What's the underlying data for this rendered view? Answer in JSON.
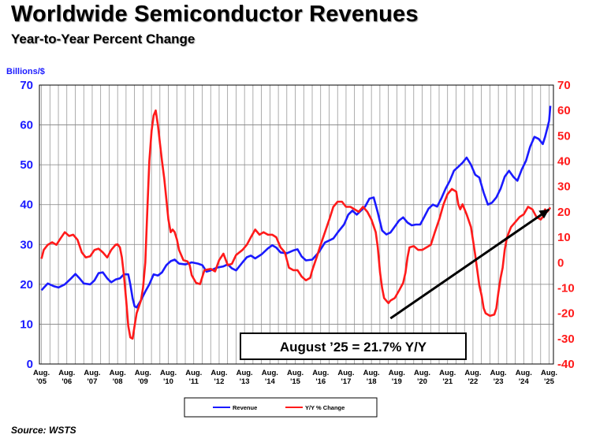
{
  "chart_data": {
    "type": "line",
    "title": "Worldwide Semiconductor Revenues",
    "subtitle": "Year-to-Year Percent Change",
    "y_left_label": "Billions/$",
    "y_left_range": [
      0,
      70
    ],
    "y_left_ticks": [
      "0",
      "10",
      "20",
      "30",
      "40",
      "50",
      "60",
      "70"
    ],
    "y_right_range": [
      -40,
      70
    ],
    "y_right_ticks": [
      "-40",
      "-30",
      "-20",
      "-10",
      "0",
      "10",
      "20",
      "30",
      "40",
      "50",
      "60",
      "70"
    ],
    "x_ticks": [
      {
        "top": "Aug.",
        "bottom": "'05"
      },
      {
        "top": "Aug.",
        "bottom": "'06"
      },
      {
        "top": "Aug.",
        "bottom": "'07"
      },
      {
        "top": "Aug.",
        "bottom": "'08"
      },
      {
        "top": "Aug.",
        "bottom": "'09"
      },
      {
        "top": "Aug.",
        "bottom": "'10"
      },
      {
        "top": "Aug.",
        "bottom": "'11"
      },
      {
        "top": "Aug.",
        "bottom": "'12"
      },
      {
        "top": "Aug.",
        "bottom": "'13"
      },
      {
        "top": "Aug.",
        "bottom": "'14"
      },
      {
        "top": "Aug.",
        "bottom": "'15"
      },
      {
        "top": "Aug.",
        "bottom": "'16"
      },
      {
        "top": "Aug.",
        "bottom": "'17"
      },
      {
        "top": "Aug.",
        "bottom": "'18"
      },
      {
        "top": "Aug.",
        "bottom": "'19"
      },
      {
        "top": "Aug.",
        "bottom": "'20"
      },
      {
        "top": "Aug.",
        "bottom": "'21"
      },
      {
        "top": "Aug.",
        "bottom": "'22"
      },
      {
        "top": "Aug.",
        "bottom": "'23"
      },
      {
        "top": "Aug.",
        "bottom": "'24"
      },
      {
        "top": "Aug.",
        "bottom": "'25"
      }
    ],
    "grid": true,
    "legend_position": "bottom-center",
    "annotation": "August ’25 = 21.7% Y/Y",
    "trend_arrow": {
      "from": {
        "x": 2019.33,
        "y": -22
      },
      "to": {
        "x": 2025.58,
        "y": 21
      }
    },
    "series": [
      {
        "name": "Revenue",
        "axis": "left",
        "color": "#1a1aff",
        "points": [
          [
            2005.58,
            18.5
          ],
          [
            2005.83,
            20.2
          ],
          [
            2006.08,
            19.5
          ],
          [
            2006.25,
            19.2
          ],
          [
            2006.5,
            20
          ],
          [
            2006.75,
            21.5
          ],
          [
            2006.92,
            22.6
          ],
          [
            2007.08,
            21.5
          ],
          [
            2007.25,
            20.2
          ],
          [
            2007.5,
            20
          ],
          [
            2007.67,
            21
          ],
          [
            2007.83,
            22.8
          ],
          [
            2008.0,
            23
          ],
          [
            2008.17,
            21.5
          ],
          [
            2008.33,
            20.5
          ],
          [
            2008.5,
            21.2
          ],
          [
            2008.67,
            21.5
          ],
          [
            2008.83,
            22.5
          ],
          [
            2009.0,
            22.5
          ],
          [
            2009.08,
            20
          ],
          [
            2009.17,
            16.5
          ],
          [
            2009.25,
            14.5
          ],
          [
            2009.33,
            14.2
          ],
          [
            2009.5,
            16
          ],
          [
            2009.67,
            18.2
          ],
          [
            2009.83,
            20
          ],
          [
            2010.0,
            22.5
          ],
          [
            2010.17,
            22.2
          ],
          [
            2010.33,
            23
          ],
          [
            2010.5,
            24.8
          ],
          [
            2010.67,
            25.8
          ],
          [
            2010.83,
            26.2
          ],
          [
            2011.0,
            25.2
          ],
          [
            2011.25,
            25
          ],
          [
            2011.5,
            25.5
          ],
          [
            2011.75,
            25.2
          ],
          [
            2011.92,
            24.8
          ],
          [
            2012.08,
            23.2
          ],
          [
            2012.25,
            23.5
          ],
          [
            2012.5,
            24.2
          ],
          [
            2012.75,
            24.5
          ],
          [
            2012.92,
            25
          ],
          [
            2013.08,
            24
          ],
          [
            2013.25,
            23.5
          ],
          [
            2013.5,
            25.5
          ],
          [
            2013.67,
            26.8
          ],
          [
            2013.83,
            27.2
          ],
          [
            2014.0,
            26.5
          ],
          [
            2014.25,
            27.5
          ],
          [
            2014.5,
            29
          ],
          [
            2014.67,
            29.8
          ],
          [
            2014.83,
            29.2
          ],
          [
            2015.0,
            28
          ],
          [
            2015.25,
            27.8
          ],
          [
            2015.5,
            28.5
          ],
          [
            2015.67,
            28.8
          ],
          [
            2015.83,
            27
          ],
          [
            2016.0,
            26
          ],
          [
            2016.25,
            26.2
          ],
          [
            2016.5,
            28
          ],
          [
            2016.75,
            30.5
          ],
          [
            2016.92,
            31
          ],
          [
            2017.08,
            31.5
          ],
          [
            2017.25,
            33
          ],
          [
            2017.5,
            35
          ],
          [
            2017.67,
            37.5
          ],
          [
            2017.83,
            38.5
          ],
          [
            2018.0,
            37.5
          ],
          [
            2018.17,
            38.5
          ],
          [
            2018.33,
            39.5
          ],
          [
            2018.5,
            41.5
          ],
          [
            2018.67,
            41.8
          ],
          [
            2018.83,
            38
          ],
          [
            2019.0,
            33.5
          ],
          [
            2019.17,
            32.5
          ],
          [
            2019.33,
            33
          ],
          [
            2019.5,
            34.5
          ],
          [
            2019.67,
            36
          ],
          [
            2019.83,
            36.8
          ],
          [
            2020.0,
            35.5
          ],
          [
            2020.17,
            34.8
          ],
          [
            2020.33,
            35
          ],
          [
            2020.5,
            35
          ],
          [
            2020.67,
            37
          ],
          [
            2020.83,
            39
          ],
          [
            2021.0,
            40
          ],
          [
            2021.17,
            39.5
          ],
          [
            2021.33,
            41.5
          ],
          [
            2021.5,
            44
          ],
          [
            2021.67,
            46
          ],
          [
            2021.83,
            48.5
          ],
          [
            2022.0,
            49.5
          ],
          [
            2022.17,
            50.5
          ],
          [
            2022.33,
            51.8
          ],
          [
            2022.5,
            50
          ],
          [
            2022.67,
            47.5
          ],
          [
            2022.83,
            46.8
          ],
          [
            2023.0,
            43
          ],
          [
            2023.17,
            40
          ],
          [
            2023.33,
            40.5
          ],
          [
            2023.5,
            41.8
          ],
          [
            2023.67,
            44
          ],
          [
            2023.83,
            47
          ],
          [
            2024.0,
            48.5
          ],
          [
            2024.17,
            47
          ],
          [
            2024.33,
            46
          ],
          [
            2024.5,
            48.8
          ],
          [
            2024.67,
            51
          ],
          [
            2024.83,
            54.5
          ],
          [
            2025.0,
            57
          ],
          [
            2025.17,
            56.5
          ],
          [
            2025.33,
            55.2
          ],
          [
            2025.42,
            57
          ],
          [
            2025.5,
            59
          ],
          [
            2025.58,
            61
          ],
          [
            2025.63,
            64.8
          ]
        ]
      },
      {
        "name": "Y/Y % Change",
        "axis": "right",
        "color": "#ff1a1a",
        "points": [
          [
            2005.58,
            1.5
          ],
          [
            2005.67,
            5
          ],
          [
            2005.83,
            7
          ],
          [
            2006.0,
            8
          ],
          [
            2006.17,
            7
          ],
          [
            2006.33,
            9.5
          ],
          [
            2006.5,
            12
          ],
          [
            2006.67,
            10.5
          ],
          [
            2006.83,
            11
          ],
          [
            2007.0,
            9
          ],
          [
            2007.17,
            4
          ],
          [
            2007.33,
            2
          ],
          [
            2007.5,
            2.5
          ],
          [
            2007.67,
            5
          ],
          [
            2007.83,
            5.5
          ],
          [
            2008.0,
            4
          ],
          [
            2008.17,
            2
          ],
          [
            2008.33,
            5
          ],
          [
            2008.5,
            7
          ],
          [
            2008.58,
            7.2
          ],
          [
            2008.67,
            6
          ],
          [
            2008.75,
            2
          ],
          [
            2008.83,
            -5
          ],
          [
            2008.92,
            -15
          ],
          [
            2009.0,
            -25
          ],
          [
            2009.08,
            -29.5
          ],
          [
            2009.17,
            -30
          ],
          [
            2009.25,
            -25
          ],
          [
            2009.33,
            -20
          ],
          [
            2009.5,
            -15
          ],
          [
            2009.58,
            -10
          ],
          [
            2009.67,
            0
          ],
          [
            2009.75,
            20
          ],
          [
            2009.83,
            40
          ],
          [
            2009.92,
            52
          ],
          [
            2010.0,
            58
          ],
          [
            2010.08,
            60
          ],
          [
            2010.17,
            54
          ],
          [
            2010.25,
            47
          ],
          [
            2010.33,
            40
          ],
          [
            2010.42,
            33
          ],
          [
            2010.5,
            25
          ],
          [
            2010.58,
            17
          ],
          [
            2010.67,
            12
          ],
          [
            2010.75,
            13
          ],
          [
            2010.83,
            12
          ],
          [
            2010.92,
            9
          ],
          [
            2011.0,
            5
          ],
          [
            2011.17,
            1
          ],
          [
            2011.33,
            0.5
          ],
          [
            2011.42,
            -1
          ],
          [
            2011.5,
            -5
          ],
          [
            2011.67,
            -8
          ],
          [
            2011.83,
            -8.5
          ],
          [
            2012.0,
            -3
          ],
          [
            2012.25,
            -2.5
          ],
          [
            2012.42,
            -3.5
          ],
          [
            2012.58,
            1
          ],
          [
            2012.75,
            3.5
          ],
          [
            2012.92,
            -1
          ],
          [
            2013.08,
            -0.5
          ],
          [
            2013.25,
            3
          ],
          [
            2013.5,
            5
          ],
          [
            2013.67,
            7
          ],
          [
            2013.83,
            10
          ],
          [
            2014.0,
            13
          ],
          [
            2014.17,
            11
          ],
          [
            2014.33,
            12
          ],
          [
            2014.5,
            11
          ],
          [
            2014.67,
            11
          ],
          [
            2014.83,
            10
          ],
          [
            2015.0,
            6
          ],
          [
            2015.17,
            4
          ],
          [
            2015.33,
            -2
          ],
          [
            2015.5,
            -3
          ],
          [
            2015.67,
            -3
          ],
          [
            2015.83,
            -5.5
          ],
          [
            2016.0,
            -7
          ],
          [
            2016.17,
            -6
          ],
          [
            2016.25,
            -3
          ],
          [
            2016.42,
            2
          ],
          [
            2016.58,
            7
          ],
          [
            2016.75,
            12
          ],
          [
            2016.92,
            17
          ],
          [
            2017.08,
            22
          ],
          [
            2017.25,
            24
          ],
          [
            2017.42,
            24
          ],
          [
            2017.58,
            22
          ],
          [
            2017.75,
            22
          ],
          [
            2017.92,
            21
          ],
          [
            2018.08,
            20
          ],
          [
            2018.25,
            22
          ],
          [
            2018.42,
            20
          ],
          [
            2018.58,
            17
          ],
          [
            2018.75,
            12
          ],
          [
            2018.83,
            6
          ],
          [
            2018.92,
            -4
          ],
          [
            2019.0,
            -10
          ],
          [
            2019.08,
            -14
          ],
          [
            2019.25,
            -16
          ],
          [
            2019.33,
            -15
          ],
          [
            2019.5,
            -14
          ],
          [
            2019.67,
            -11
          ],
          [
            2019.83,
            -8
          ],
          [
            2019.92,
            -4
          ],
          [
            2020.0,
            2
          ],
          [
            2020.08,
            6
          ],
          [
            2020.25,
            6.5
          ],
          [
            2020.42,
            5
          ],
          [
            2020.58,
            5
          ],
          [
            2020.75,
            6
          ],
          [
            2020.92,
            7
          ],
          [
            2021.08,
            12
          ],
          [
            2021.25,
            17
          ],
          [
            2021.42,
            23
          ],
          [
            2021.58,
            27
          ],
          [
            2021.75,
            29
          ],
          [
            2021.92,
            28
          ],
          [
            2022.0,
            23
          ],
          [
            2022.08,
            21
          ],
          [
            2022.17,
            23
          ],
          [
            2022.33,
            19
          ],
          [
            2022.5,
            14
          ],
          [
            2022.58,
            9
          ],
          [
            2022.67,
            3
          ],
          [
            2022.75,
            -3
          ],
          [
            2022.83,
            -9
          ],
          [
            2022.92,
            -13
          ],
          [
            2023.0,
            -18
          ],
          [
            2023.08,
            -20
          ],
          [
            2023.25,
            -21
          ],
          [
            2023.42,
            -20.5
          ],
          [
            2023.5,
            -18
          ],
          [
            2023.58,
            -12
          ],
          [
            2023.67,
            -6
          ],
          [
            2023.75,
            -2
          ],
          [
            2023.83,
            5
          ],
          [
            2023.92,
            10
          ],
          [
            2024.08,
            14
          ],
          [
            2024.25,
            16
          ],
          [
            2024.42,
            18
          ],
          [
            2024.58,
            19
          ],
          [
            2024.75,
            22
          ],
          [
            2024.92,
            21
          ],
          [
            2025.08,
            18
          ],
          [
            2025.25,
            17
          ],
          [
            2025.33,
            18
          ],
          [
            2025.42,
            21
          ],
          [
            2025.5,
            20
          ],
          [
            2025.63,
            21.7
          ]
        ]
      }
    ]
  }
}
